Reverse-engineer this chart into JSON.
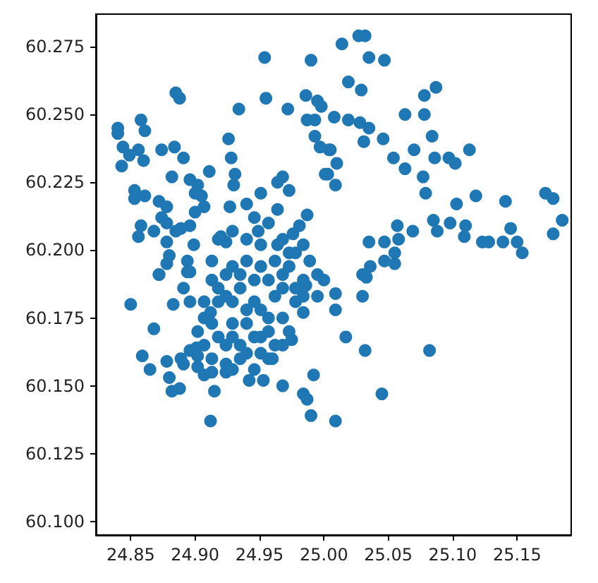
{
  "chart_data": {
    "type": "scatter",
    "marker": "circle",
    "grid": false,
    "xlim": [
      24.823,
      25.192
    ],
    "ylim": [
      60.095,
      60.287
    ],
    "xticks": [
      {
        "value": 24.85,
        "label": "24.85"
      },
      {
        "value": 24.9,
        "label": "24.90"
      },
      {
        "value": 24.95,
        "label": "24.95"
      },
      {
        "value": 25.0,
        "label": "25.00"
      },
      {
        "value": 25.05,
        "label": "25.05"
      },
      {
        "value": 25.1,
        "label": "25.10"
      },
      {
        "value": 25.15,
        "label": "25.15"
      }
    ],
    "yticks": [
      {
        "value": 60.1,
        "label": "60.100"
      },
      {
        "value": 60.125,
        "label": "60.125"
      },
      {
        "value": 60.15,
        "label": "60.150"
      },
      {
        "value": 60.175,
        "label": "60.175"
      },
      {
        "value": 60.2,
        "label": "60.200"
      },
      {
        "value": 60.225,
        "label": "60.225"
      },
      {
        "value": 60.25,
        "label": "60.250"
      },
      {
        "value": 60.275,
        "label": "60.275"
      }
    ],
    "series": [
      {
        "color": "#1f77b4",
        "x": [
          25.014,
          25.027,
          25.032,
          25.035,
          25.047,
          25.019,
          25.029,
          25.078,
          25.087,
          25.063,
          25.078,
          25.084,
          25.046,
          25.031,
          25.005,
          25.01,
          25.003,
          25.008,
          25.019,
          25.028,
          25.035,
          25.054,
          25.063,
          25.07,
          25.086,
          25.097,
          25.113,
          25.102,
          25.077,
          25.079,
          25.118,
          25.103,
          25.141,
          25.172,
          25.178,
          25.185,
          25.178,
          25.145,
          25.15,
          25.154,
          25.139,
          25.123,
          25.128,
          25.11,
          25.109,
          25.098,
          25.085,
          25.088,
          25.069,
          25.057,
          25.058,
          25.047,
          25.035,
          25.055,
          25.047,
          25.036,
          25.03,
          25.055,
          24.954,
          24.99,
          24.885,
          24.888,
          24.955,
          24.934,
          24.972,
          24.986,
          24.995,
          24.998,
          24.987,
          24.993,
          24.84,
          24.84,
          24.858,
          24.861,
          24.844,
          24.849,
          24.856,
          24.86,
          24.843,
          24.874,
          24.884,
          24.891,
          24.926,
          24.928,
          24.911,
          24.882,
          24.896,
          24.902,
          24.931,
          24.93,
          24.993,
          24.997,
          25.004,
          25.001,
          25.009,
          24.968,
          24.964,
          24.973,
          24.853,
          24.853,
          24.861,
          24.872,
          24.878,
          24.874,
          24.878,
          24.858,
          24.868,
          24.856,
          24.878,
          24.885,
          24.889,
          24.9,
          24.905,
          24.9,
          24.907,
          24.896,
          24.927,
          24.94,
          24.951,
          24.964,
          24.946,
          24.957,
          24.949,
          24.987,
          24.981,
          24.976,
          24.968,
          24.964,
          24.92,
          24.924,
          24.899,
          24.88,
          24.878,
          24.872,
          24.894,
          24.896,
          24.913,
          24.924,
          24.935,
          24.94,
          24.929,
          24.918,
          24.907,
          24.913,
          24.924,
          24.94,
          24.951,
          24.957,
          24.946,
          24.962,
          24.968,
          24.973,
          24.978,
          24.951,
          24.94,
          24.929,
          24.918,
          24.907,
          24.902,
          24.896,
          24.891,
          24.924,
          24.946,
          24.957,
          24.968,
          24.984,
          24.978,
          24.968,
          24.85,
          24.883,
          24.868,
          24.872,
          24.859,
          24.865,
          24.878,
          24.889,
          24.88,
          24.882,
          24.888,
          24.912,
          24.912,
          24.901,
          24.902,
          24.907,
          24.915,
          24.942,
          24.953,
          24.96,
          24.968,
          24.975,
          24.984,
          24.986,
          24.992,
          24.984,
          24.987,
          24.99,
          25.009,
          25.009,
          25.009,
          24.894,
          25.017,
          25.032,
          25.082,
          25.045,
          25.033,
          25.03,
          24.918,
          24.929,
          24.94,
          24.951,
          24.962,
          24.973,
          24.984,
          24.989,
          24.995,
          24.913,
          24.924,
          24.935,
          24.946,
          24.957,
          24.968,
          24.978,
          24.918,
          24.929,
          24.94,
          24.951,
          24.957,
          24.946,
          24.935,
          24.924,
          24.913,
          24.929,
          24.962,
          24.935,
          24.951,
          24.973,
          24.984,
          24.995,
          25.0,
          24.902,
          24.913,
          24.929,
          24.907,
          24.896,
          24.891
        ],
        "values": [
          60.276,
          60.279,
          60.279,
          60.271,
          60.27,
          60.262,
          60.259,
          60.257,
          60.26,
          60.25,
          60.25,
          60.242,
          60.241,
          60.24,
          60.237,
          60.232,
          60.228,
          60.249,
          60.248,
          60.247,
          60.245,
          60.234,
          60.23,
          60.237,
          60.234,
          60.234,
          60.237,
          60.232,
          60.227,
          60.221,
          60.22,
          60.217,
          60.218,
          60.221,
          60.219,
          60.211,
          60.206,
          60.208,
          60.203,
          60.199,
          60.203,
          60.203,
          60.203,
          60.209,
          60.205,
          60.21,
          60.211,
          60.207,
          60.207,
          60.209,
          60.204,
          60.203,
          60.203,
          60.199,
          60.196,
          60.194,
          60.191,
          60.195,
          60.271,
          60.27,
          60.258,
          60.256,
          60.256,
          60.252,
          60.252,
          60.257,
          60.255,
          60.253,
          60.248,
          60.248,
          60.245,
          60.243,
          60.248,
          60.244,
          60.238,
          60.235,
          60.237,
          60.233,
          60.231,
          60.237,
          60.238,
          60.234,
          60.241,
          60.234,
          60.229,
          60.227,
          60.226,
          60.224,
          60.228,
          60.224,
          60.242,
          60.238,
          60.237,
          60.228,
          60.224,
          60.227,
          60.225,
          60.222,
          60.222,
          60.219,
          60.22,
          60.218,
          60.216,
          60.212,
          60.21,
          60.209,
          60.207,
          60.205,
          60.203,
          60.207,
          60.208,
          60.214,
          60.22,
          60.221,
          60.216,
          60.209,
          60.216,
          60.217,
          60.221,
          60.215,
          60.212,
          60.21,
          60.207,
          60.213,
          60.209,
          60.206,
          60.204,
          60.202,
          60.205,
          60.203,
          60.202,
          60.198,
          60.195,
          60.191,
          60.196,
          60.192,
          60.189,
          60.183,
          60.186,
          60.178,
          60.173,
          60.168,
          60.165,
          60.16,
          60.158,
          60.162,
          60.168,
          60.175,
          60.181,
          60.183,
          60.191,
          60.194,
          60.199,
          60.194,
          60.196,
          60.194,
          60.181,
          60.175,
          60.17,
          60.163,
          60.158,
          60.155,
          60.156,
          60.16,
          60.165,
          60.189,
          60.181,
          60.175,
          60.18,
          60.18,
          60.171,
          60.191,
          60.161,
          60.156,
          60.159,
          60.16,
          60.153,
          60.148,
          60.149,
          60.137,
          60.177,
          60.164,
          60.161,
          60.154,
          60.148,
          60.152,
          60.152,
          60.16,
          60.15,
          60.167,
          60.177,
          60.187,
          60.154,
          60.147,
          60.145,
          60.139,
          60.184,
          60.178,
          60.137,
          60.192,
          60.168,
          60.163,
          60.163,
          60.147,
          60.19,
          60.183,
          60.204,
          60.207,
          60.204,
          60.202,
          60.196,
          60.199,
          60.202,
          60.196,
          60.191,
          60.196,
          60.191,
          60.191,
          60.189,
          60.189,
          60.186,
          60.186,
          60.186,
          60.181,
          60.173,
          60.178,
          60.17,
          60.168,
          60.165,
          60.165,
          60.173,
          60.168,
          60.165,
          60.16,
          60.162,
          60.17,
          60.183,
          60.183,
          60.189,
          60.157,
          60.155,
          60.156,
          60.181,
          60.181,
          60.186
        ]
      }
    ]
  }
}
